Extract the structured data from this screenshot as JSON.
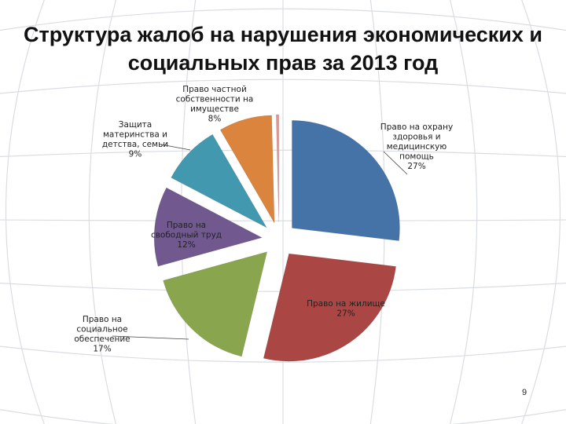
{
  "slide": {
    "title_line1": "Структура жалоб на нарушения экономических и",
    "title_line2": "социальных прав за 2013 год",
    "page_number": "9"
  },
  "chart_data": {
    "type": "pie",
    "title": "",
    "exploded": true,
    "slices": [
      {
        "label_lines": [
          "Право на охрану",
          "здоровья и",
          "медицинскую",
          "помощь"
        ],
        "value_text": "27%",
        "value": 27,
        "color": "#4572a7"
      },
      {
        "label_lines": [
          "Право на жилище"
        ],
        "value_text": "27%",
        "value": 27,
        "color": "#aa4643"
      },
      {
        "label_lines": [
          "Право на",
          "социальное",
          "обеспечение"
        ],
        "value_text": "17%",
        "value": 17,
        "color": "#89a54e"
      },
      {
        "label_lines": [
          "Право на",
          "свободный труд"
        ],
        "value_text": "12%",
        "value": 12,
        "color": "#71588f"
      },
      {
        "label_lines": [
          "Защита",
          "материнства и",
          "детства, семьи"
        ],
        "value_text": "9%",
        "value": 9,
        "color": "#4198af"
      },
      {
        "label_lines": [
          "Право частной",
          "собственности на",
          "имуществе"
        ],
        "value_text": "8%",
        "value": 8,
        "color": "#db843d"
      },
      {
        "label_lines": [],
        "value_text": "",
        "value": 0.4,
        "color": "#e39591"
      }
    ]
  }
}
